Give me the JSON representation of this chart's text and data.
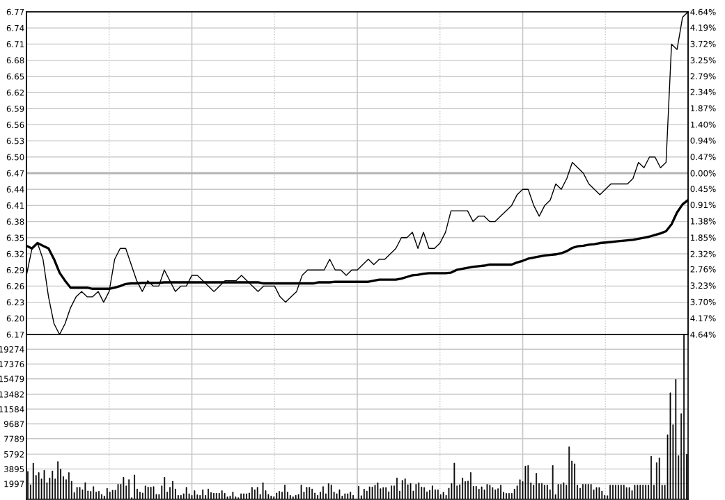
{
  "chart_data": [
    {
      "type": "line",
      "categories": [
        null,
        null,
        null,
        null,
        null,
        null,
        null,
        null,
        null,
        null,
        null,
        null,
        null,
        null,
        null,
        null,
        null,
        null,
        null,
        null,
        null,
        null,
        null,
        null,
        null,
        null,
        null,
        null,
        null,
        null,
        null,
        null,
        null,
        null,
        null,
        null,
        null,
        null,
        null,
        null,
        null,
        null,
        null,
        null,
        null,
        null,
        null,
        null,
        null,
        null,
        null,
        null,
        null,
        null,
        null,
        null,
        null,
        null,
        null,
        null,
        null,
        null,
        null,
        null,
        null,
        null,
        null,
        null,
        null,
        null,
        null,
        null,
        null,
        null,
        null,
        null,
        null,
        null,
        null,
        null,
        null,
        null,
        null,
        null,
        null,
        null,
        null,
        null,
        null,
        null,
        null,
        null,
        null,
        null,
        null,
        null,
        null,
        null,
        null,
        null,
        null,
        null,
        null,
        null,
        null,
        null,
        null,
        null,
        null,
        null,
        null,
        null,
        null,
        null,
        null,
        null,
        null,
        null,
        null,
        null,
        null
      ],
      "ylim": [
        6.17,
        6.77
      ],
      "yticks": [
        6.17,
        {
          "value": 6.2,
          "label": "6.20"
        },
        6.23,
        6.26,
        6.29,
        6.32,
        6.35,
        6.38,
        6.41,
        6.44,
        6.47,
        {
          "value": 6.5,
          "label": "6.50"
        },
        6.53,
        6.56,
        6.59,
        6.62,
        6.65,
        6.68,
        6.71,
        6.74,
        6.77
      ],
      "y2lim": [
        -4.64,
        4.64
      ],
      "y2ticks": [
        {
          "value": -4.64,
          "label": "4.64%"
        },
        {
          "value": -4.17,
          "label": "4.17%"
        },
        {
          "value": -3.7,
          "label": "3.70%"
        },
        {
          "value": -3.23,
          "label": "3.23%"
        },
        {
          "value": -2.76,
          "label": "2.76%"
        },
        {
          "value": -2.32,
          "label": "2.32%"
        },
        {
          "value": -1.85,
          "label": "1.85%"
        },
        {
          "value": -1.38,
          "label": "1.38%"
        },
        {
          "value": -0.91,
          "label": "0.91%"
        },
        {
          "value": -0.45,
          "label": "0.45%"
        },
        {
          "value": 0,
          "label": "0.00%"
        },
        {
          "value": 0.47,
          "label": "0.47%"
        },
        {
          "value": 0.94,
          "label": "0.94%"
        },
        {
          "value": 1.4,
          "label": "1.40%"
        },
        {
          "value": 1.87,
          "label": "1.87%"
        },
        {
          "value": 2.34,
          "label": "2.34%"
        },
        {
          "value": 2.79,
          "label": "2.79%"
        },
        {
          "value": 3.25,
          "label": "3.25%"
        },
        {
          "value": 3.72,
          "label": "3.72%"
        },
        {
          "value": 4.19,
          "label": "4.19%"
        },
        {
          "value": 4.64,
          "label": "4.64%"
        }
      ],
      "grid": true,
      "tick_labels": "y",
      "ref_lines": [
        {
          "axis": "y",
          "value": 6.47,
          "color": "#b4b4b4"
        }
      ],
      "series": [
        {
          "color": "#000000",
          "values": [
            6.28,
            6.33,
            6.34,
            6.31,
            6.24,
            6.19,
            6.17,
            6.19,
            6.22,
            6.24,
            6.25,
            6.24,
            6.24,
            6.25,
            6.23,
            6.25,
            6.31,
            6.33,
            6.33,
            6.3,
            6.27,
            6.25,
            6.27,
            6.26,
            6.26,
            6.29,
            6.27,
            6.25,
            6.26,
            6.26,
            6.28,
            6.28,
            6.27,
            6.26,
            6.25,
            6.26,
            6.27,
            6.27,
            6.27,
            6.28,
            6.27,
            6.26,
            6.25,
            6.26,
            6.26,
            6.26,
            6.24,
            6.23,
            6.24,
            6.25,
            6.28,
            6.29,
            6.29,
            6.29,
            6.29,
            6.31,
            6.29,
            6.29,
            6.28,
            6.29,
            6.29,
            6.3,
            6.31,
            6.3,
            6.31,
            6.31,
            6.32,
            6.33,
            6.35,
            6.35,
            6.36,
            6.33,
            6.36,
            6.33,
            6.33,
            6.34,
            6.36,
            6.4,
            6.4,
            6.4,
            6.4,
            6.38,
            6.39,
            6.39,
            6.38,
            6.38,
            6.39,
            6.4,
            6.41,
            6.43,
            6.44,
            6.44,
            6.41,
            6.39,
            6.41,
            6.42,
            6.45,
            6.44,
            6.46,
            6.49,
            6.48,
            6.47,
            6.45,
            6.44,
            6.43,
            6.44,
            6.45,
            6.45,
            6.45,
            6.45,
            6.46,
            6.49,
            6.48,
            6.5,
            6.5,
            6.48,
            6.49,
            6.71,
            6.7,
            6.76,
            6.77
          ]
        },
        {
          "color": "#000000",
          "values": [
            6.335,
            6.33,
            6.34,
            6.335,
            6.33,
            6.31,
            6.285,
            6.27,
            6.257,
            6.257,
            6.257,
            6.257,
            6.255,
            6.255,
            6.255,
            6.255,
            6.257,
            6.26,
            6.264,
            6.265,
            6.265,
            6.266,
            6.266,
            6.266,
            6.266,
            6.267,
            6.267,
            6.267,
            6.267,
            6.267,
            6.267,
            6.267,
            6.267,
            6.267,
            6.267,
            6.267,
            6.267,
            6.267,
            6.267,
            6.267,
            6.267,
            6.267,
            6.267,
            6.265,
            6.265,
            6.265,
            6.265,
            6.265,
            6.265,
            6.265,
            6.265,
            6.265,
            6.265,
            6.267,
            6.267,
            6.267,
            6.268,
            6.268,
            6.268,
            6.268,
            6.268,
            6.268,
            6.268,
            6.27,
            6.272,
            6.272,
            6.272,
            6.272,
            6.274,
            6.277,
            6.28,
            6.281,
            6.283,
            6.284,
            6.284,
            6.284,
            6.284,
            6.285,
            6.29,
            6.292,
            6.294,
            6.296,
            6.297,
            6.298,
            6.3,
            6.3,
            6.3,
            6.3,
            6.3,
            6.304,
            6.307,
            6.311,
            6.313,
            6.315,
            6.317,
            6.318,
            6.319,
            6.321,
            6.325,
            6.331,
            6.334,
            6.335,
            6.337,
            6.338,
            6.34,
            6.341,
            6.342,
            6.343,
            6.344,
            6.345,
            6.346,
            6.348,
            6.35,
            6.352,
            6.355,
            6.358,
            6.362,
            6.375,
            6.397,
            6.412,
            6.42
          ]
        }
      ]
    },
    {
      "type": "bar",
      "categories": [
        null,
        null,
        null,
        null,
        null,
        null,
        null,
        null,
        null,
        null,
        null,
        null,
        null,
        null,
        null,
        null,
        null,
        null,
        null,
        null,
        null,
        null,
        null,
        null,
        null,
        null,
        null,
        null,
        null,
        null,
        null,
        null,
        null,
        null,
        null,
        null,
        null,
        null,
        null,
        null,
        null,
        null,
        null,
        null,
        null,
        null,
        null,
        null,
        null,
        null,
        null,
        null,
        null,
        null,
        null,
        null,
        null,
        null,
        null,
        null,
        null,
        null,
        null,
        null,
        null,
        null,
        null,
        null,
        null,
        null,
        null,
        null,
        null,
        null,
        null,
        null,
        null,
        null,
        null,
        null,
        null,
        null,
        null,
        null,
        null,
        null,
        null,
        null,
        null,
        null,
        null,
        null,
        null,
        null,
        null,
        null,
        null,
        null,
        null,
        null,
        null,
        null,
        null,
        null,
        null,
        null,
        null,
        null,
        null,
        null,
        null,
        null,
        null,
        null,
        null,
        null,
        null,
        null,
        null,
        null,
        null,
        null,
        null,
        null,
        null,
        null,
        null,
        null,
        null,
        null,
        null,
        null,
        null,
        null,
        null,
        null,
        null,
        null,
        null,
        null,
        null,
        null,
        null,
        null,
        null,
        null,
        null,
        null,
        null,
        null,
        null,
        null,
        null,
        null,
        null,
        null,
        null,
        null,
        null,
        null,
        null,
        null,
        null,
        null,
        null,
        null,
        null,
        null,
        null,
        null,
        null,
        null,
        null,
        null,
        null,
        null,
        null,
        null,
        null,
        null,
        null,
        null,
        null,
        null,
        null,
        null,
        null,
        null,
        null,
        null,
        null,
        null,
        null,
        null,
        null,
        null,
        null,
        null,
        null,
        null,
        null,
        null,
        null,
        null,
        null,
        null,
        null,
        null,
        null,
        null,
        null,
        null,
        null,
        null,
        null,
        null,
        null,
        null,
        null,
        null,
        null,
        null,
        null,
        null,
        null,
        null,
        null,
        null,
        null,
        null,
        null,
        null,
        null,
        null,
        null,
        null,
        null,
        null,
        null,
        null,
        null,
        null
      ],
      "ylim": [
        0,
        21170
      ],
      "yticks": [
        1997,
        3895,
        5792,
        7789,
        9687,
        11584,
        13482,
        15479,
        17376,
        19274
      ],
      "grid": true,
      "tick_labels": "y",
      "color": "#000000",
      "values": [
        3580,
        1870,
        4640,
        3070,
        3430,
        2620,
        3730,
        2140,
        2740,
        3640,
        2620,
        4850,
        3880,
        2920,
        2530,
        3430,
        2320,
        870,
        1540,
        1540,
        1230,
        2140,
        1080,
        1020,
        1630,
        930,
        1020,
        630,
        420,
        1410,
        930,
        1170,
        1170,
        1930,
        1930,
        2830,
        1720,
        2530,
        210,
        3130,
        1320,
        930,
        810,
        1720,
        1570,
        1570,
        1630,
        630,
        630,
        1720,
        2830,
        930,
        1540,
        2320,
        1320,
        510,
        510,
        720,
        1540,
        720,
        510,
        1110,
        570,
        510,
        1230,
        510,
        1320,
        870,
        780,
        780,
        780,
        1110,
        780,
        330,
        420,
        930,
        330,
        210,
        720,
        720,
        720,
        810,
        1540,
        1230,
        1540,
        630,
        2140,
        1110,
        630,
        420,
        330,
        810,
        1020,
        930,
        1840,
        930,
        510,
        330,
        510,
        630,
        1840,
        930,
        1540,
        1540,
        1320,
        810,
        510,
        930,
        1630,
        720,
        2020,
        1840,
        930,
        720,
        1230,
        420,
        720,
        720,
        930,
        510,
        null,
        1670,
        460,
        1310,
        1060,
        1610,
        1580,
        1820,
        2130,
        1370,
        1520,
        1520,
        970,
        1730,
        1730,
        2740,
        1060,
        2430,
        2640,
        1880,
        2040,
        1060,
        1920,
        2130,
        1580,
        1520,
        970,
        1160,
        1730,
        1220,
        1220,
        610,
        910,
        520,
        1430,
        2040,
        4650,
        1730,
        1880,
        2740,
        2280,
        2340,
        3440,
        1670,
        1670,
        1310,
        1610,
        1220,
        1920,
        1820,
        1520,
        1220,
        1370,
        1820,
        910,
        760,
        760,
        760,
        1310,
        1730,
        2520,
        2280,
        4260,
        4350,
        2130,
        1820,
        3340,
        2040,
        2040,
        1820,
        1820,
        1220,
        4350,
        610,
        1920,
        1920,
        2130,
        1820,
        6750,
        4920,
        4560,
        1820,
        1430,
        1920,
        1920,
        1920,
        1920,
        1220,
        1520,
        1520,
        1060,
        520,
        460,
        1820,
        1820,
        1820,
        1820,
        1820,
        1820,
        1520,
        1520,
        1120,
        1820,
        1820,
        1820,
        1820,
        1820,
        1820,
        5530,
        1820,
        4710,
        5320,
        1820,
        1820,
        8300,
        13680,
        9580,
        15410,
        5620,
        11000,
        21170,
        5780
      ]
    }
  ]
}
